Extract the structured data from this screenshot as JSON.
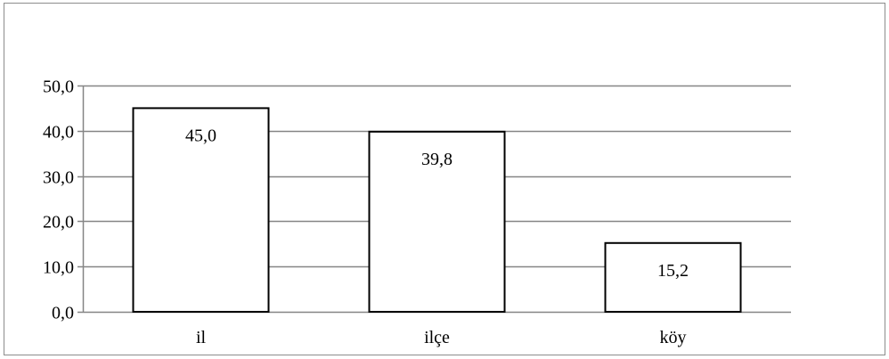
{
  "chart_data": {
    "type": "bar",
    "title": "",
    "xlabel": "",
    "ylabel": "",
    "categories": [
      "il",
      "ilçe",
      "köy"
    ],
    "values": [
      45.0,
      39.8,
      15.2
    ],
    "data_labels": [
      "45,0",
      "39,8",
      "15,2"
    ],
    "ylim": [
      0,
      50
    ],
    "yticks": [
      0,
      10,
      20,
      30,
      40,
      50
    ],
    "ytick_labels": [
      "0,0",
      "10,0",
      "20,0",
      "30,0",
      "40,0",
      "50,0"
    ],
    "grid": true,
    "legend": "none",
    "colors": {
      "bar_fill": "#ffffff",
      "bar_stroke": "#000000",
      "grid": "#868686",
      "axis": "#868686",
      "frame": "#8c8c8c"
    }
  }
}
